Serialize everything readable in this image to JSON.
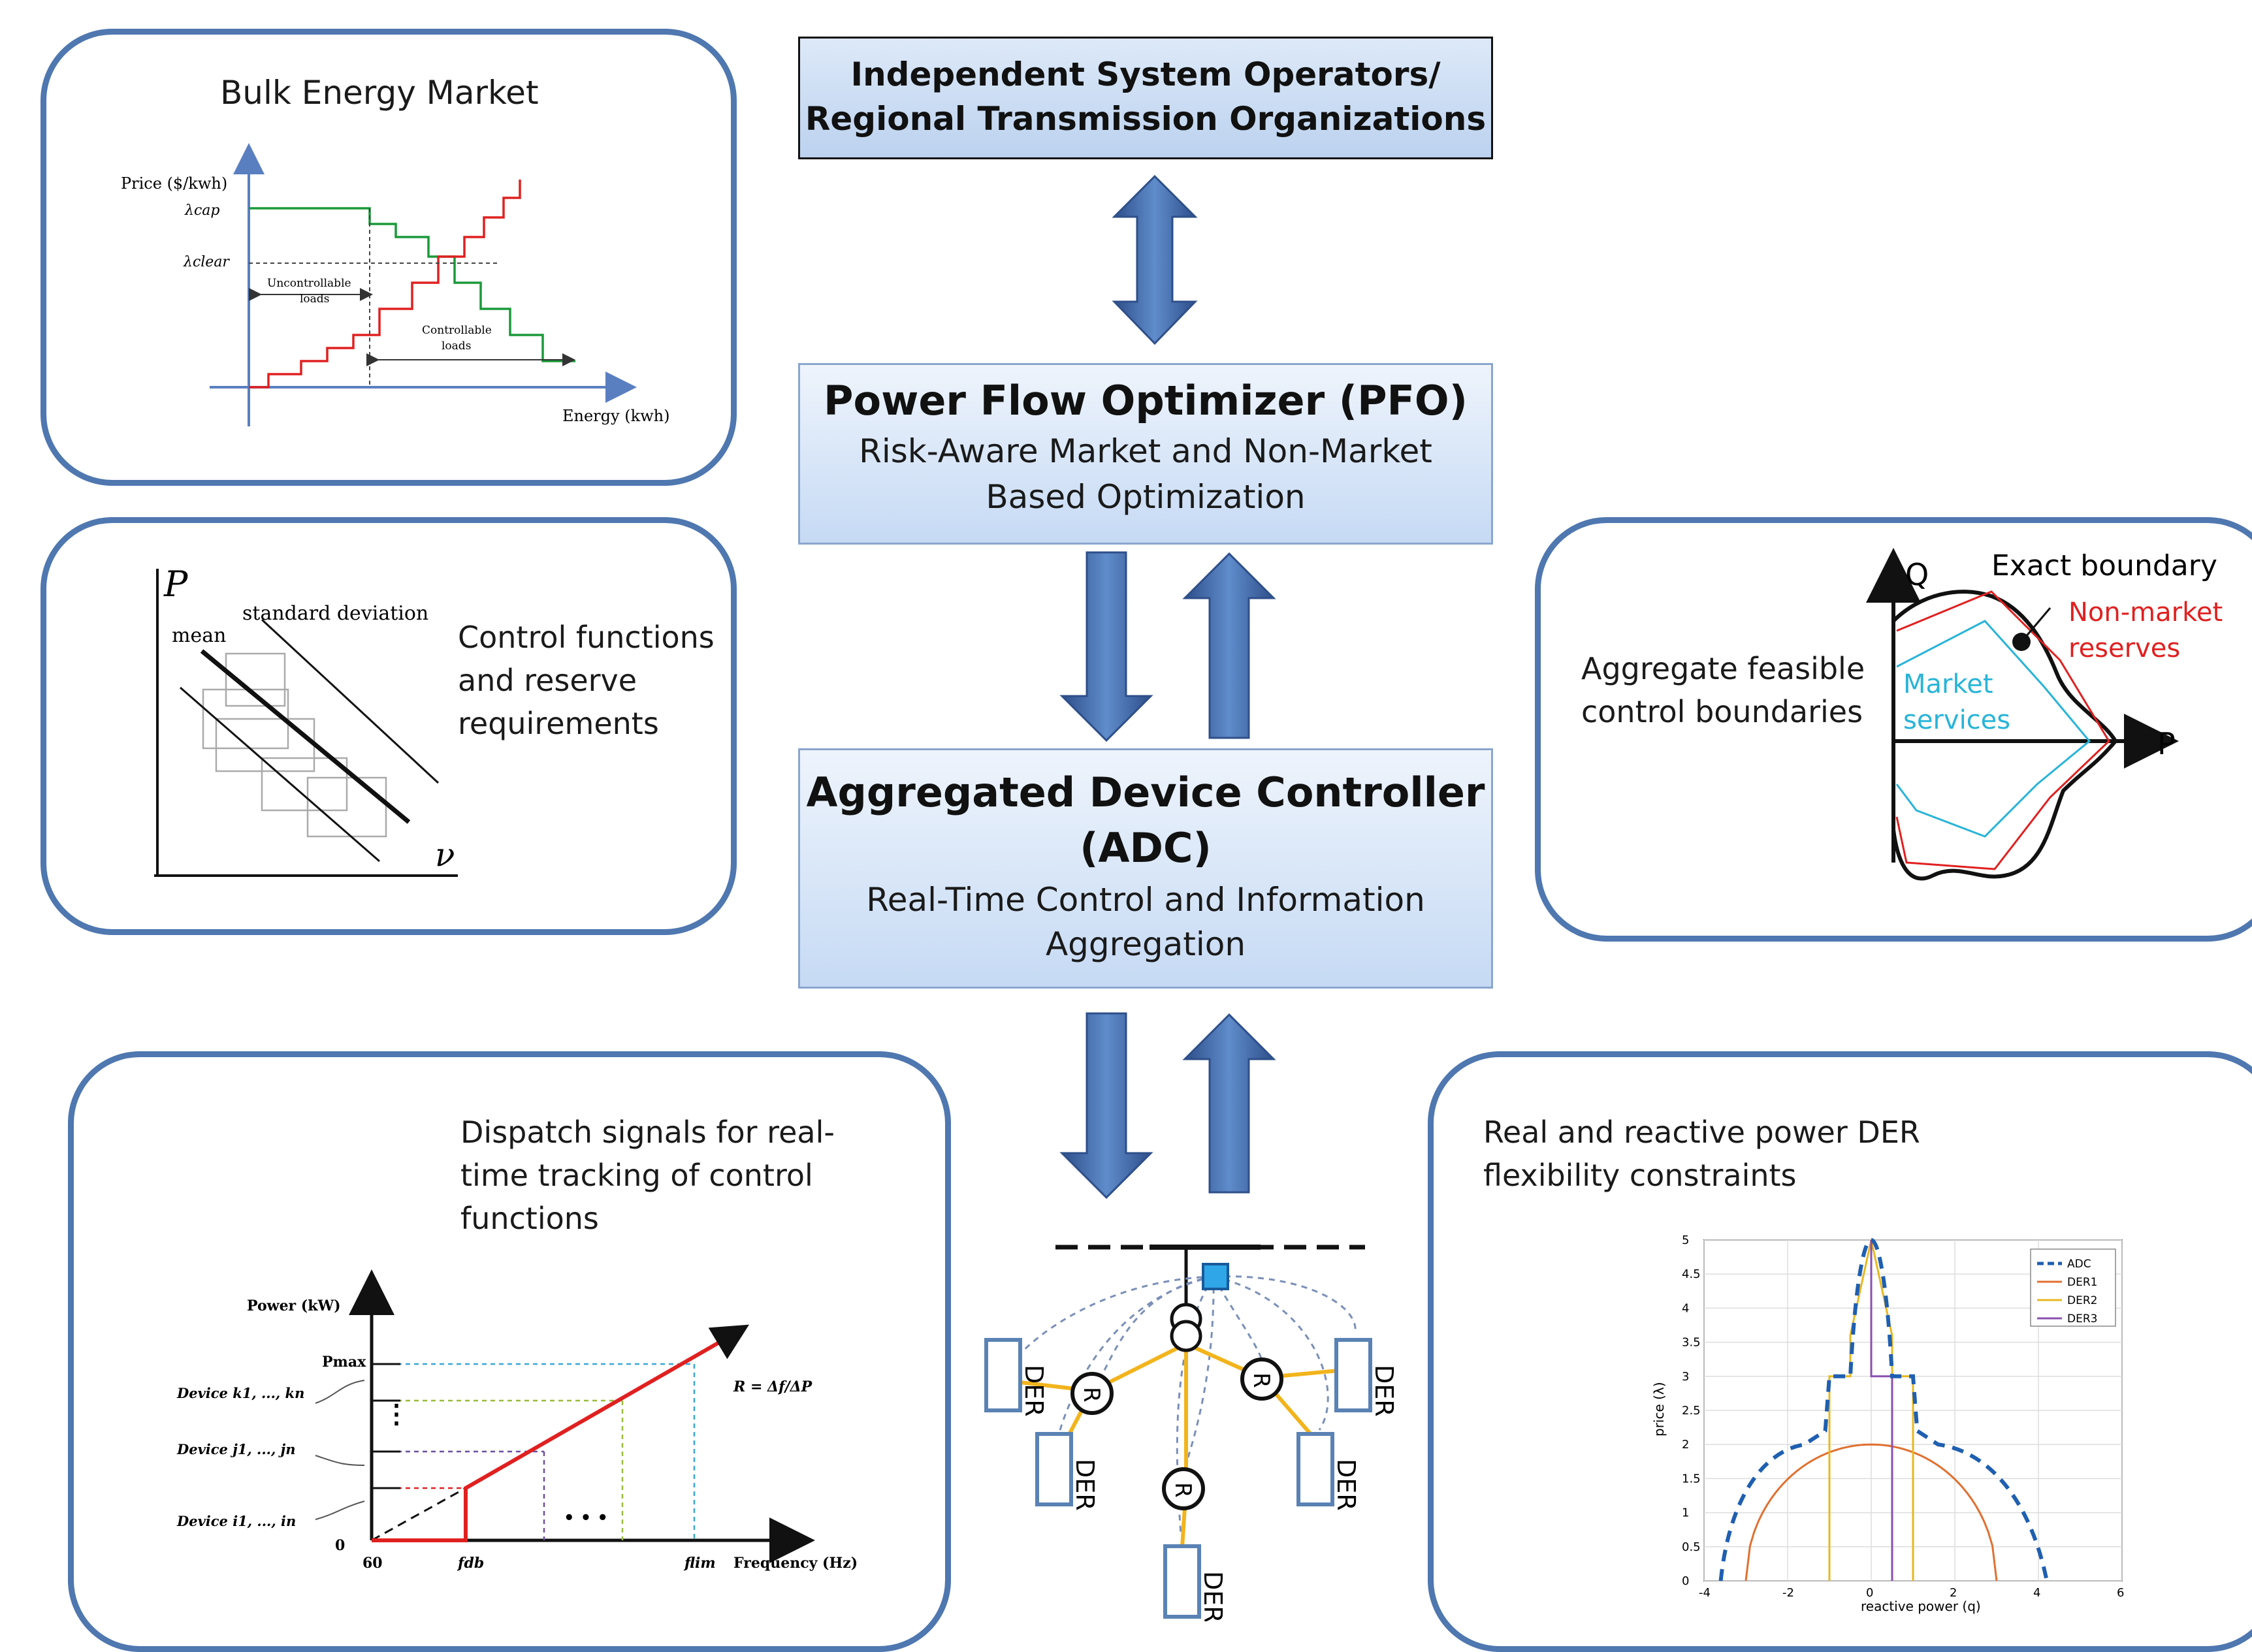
{
  "iso": {
    "line1": "Independent System Operators/",
    "line2": "Regional Transmission Organizations"
  },
  "pfo": {
    "title": "Power Flow Optimizer (PFO)",
    "sub1": "Risk-Aware Market  and Non-Market",
    "sub2": "Based Optimization"
  },
  "adc": {
    "title1": "Aggregated  Device Controller",
    "title2": "(ADC)",
    "sub1": "Real-Time Control and Information",
    "sub2": "Aggregation"
  },
  "bulk": {
    "title": "Bulk Energy Market",
    "ylabel": "Price ($/kwh)",
    "lambda_cap": "λcap",
    "lambda_clear": "λclear",
    "uncontrollable1": "Uncontrollable",
    "uncontrollable2": "loads",
    "controllable1": "Controllable",
    "controllable2": "loads",
    "xlabel": "Energy (kwh)"
  },
  "control": {
    "text1": "Control functions",
    "text2": "and reserve",
    "text3": "requirements",
    "p_axis": "P",
    "v_axis": "ν",
    "mean": "mean",
    "std": "standard deviation"
  },
  "boundary": {
    "text1": "Aggregate feasible",
    "text2": "control boundaries",
    "q_axis": "Q",
    "p_axis": "P",
    "exact": "Exact boundary",
    "nonmarket1": "Non-market",
    "nonmarket2": "reserves",
    "market1": "Market",
    "market2": "services"
  },
  "dispatch": {
    "text1": "Dispatch signals  for real-",
    "text2": "time tracking of control",
    "text3": "functions",
    "ylabel": "Power (kW)",
    "pmax": "Pmax",
    "device_k": "Device k1, ..., kn",
    "device_j": "Device j1, ..., jn",
    "device_i": "Device i1, ..., in",
    "zero": "0",
    "sixty": "60",
    "fdb": "fdb",
    "flim": "flim",
    "xlabel": "Frequency (Hz)",
    "r_label": "R = Δf/ΔP",
    "dots": "• • •"
  },
  "network": {
    "der": "DER",
    "r": "R"
  },
  "flex": {
    "text1": "Real and reactive power DER",
    "text2": "flexibility constraints",
    "ylabel": "price (λ)",
    "xlabel": "reactive power (q)",
    "legend": [
      "ADC",
      "DER1",
      "DER2",
      "DER3"
    ],
    "xticks": [
      "-4",
      "-2",
      "0",
      "2",
      "4",
      "6"
    ],
    "yticks": [
      "0",
      "0.5",
      "1",
      "1.5",
      "2",
      "2.5",
      "3",
      "3.5",
      "4",
      "4.5",
      "5"
    ]
  },
  "colors": {
    "panel_border": "#4f77b0",
    "arrow": "#3d66a8",
    "red": "#e02020",
    "green": "#1a9a3a",
    "cyan": "#28b4d8",
    "der_box": "#5a82b4",
    "feeder": "#f2b41c"
  }
}
